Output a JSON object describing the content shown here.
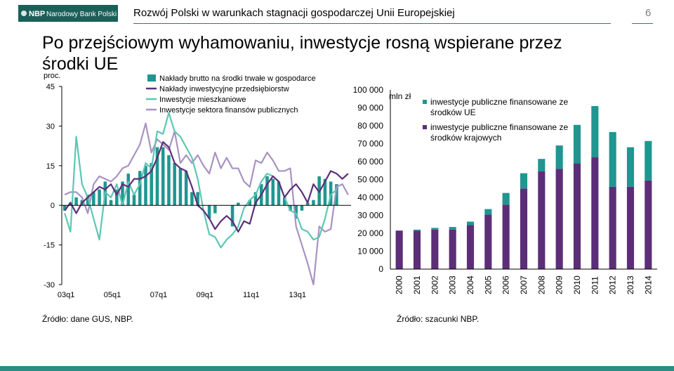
{
  "header": {
    "logo_short": "NBP",
    "logo_name": "Narodowy Bank Polski",
    "title": "Rozwój Polski w warunkach stagnacji gospodarczej Unii Europejskiej",
    "page_number": "6"
  },
  "main_title": "Po przejściowym wyhamowaniu, inwestycje rosną wspierane przez środki UE",
  "sources": {
    "left": "Źródło: dane GUS, NBP.",
    "right": "Źródło: szacunki NBP."
  },
  "colors": {
    "teal": "#1f9690",
    "purple": "#5c2e78",
    "light_teal": "#5cc7b2",
    "lavender": "#a892c2",
    "accent_line": "#2b7a72"
  },
  "chart_data": [
    {
      "type": "bar",
      "ylabel": "proc.",
      "ylim": [
        -30,
        45
      ],
      "yticks": [
        "45",
        "30",
        "15",
        "0",
        "-15",
        "-30"
      ],
      "xticks": [
        "03q1",
        "05q1",
        "07q1",
        "09q1",
        "11q1",
        "13q1"
      ],
      "legend": [
        "Nakłady brutto na środki trwałe w gospodarce",
        "Nakłady inwestycyjne przedsiębiorstw",
        "Inwestycje mieszkaniowe",
        "Inwestycje sektora finansów publicznych"
      ],
      "series": [
        {
          "name": "Nakłady brutto na środki trwałe w gospodarce",
          "kind": "bar",
          "values": [
            -2,
            1,
            3,
            2,
            4,
            5,
            6,
            9,
            2,
            6,
            9,
            12,
            4,
            13,
            15,
            16,
            22,
            22,
            19,
            16,
            14,
            13,
            5,
            5,
            0,
            -5,
            -3,
            0,
            0,
            -8,
            1,
            0,
            2,
            5,
            8,
            11,
            10,
            9,
            3,
            -2,
            -5,
            -2,
            1,
            2,
            11,
            10,
            9,
            8
          ]
        },
        {
          "name": "Nakłady inwestycyjne przedsiębiorstw",
          "kind": "line",
          "values": [
            -2,
            1,
            -3,
            1,
            3,
            5,
            7,
            6,
            8,
            4,
            8,
            7,
            10,
            10,
            11,
            13,
            18,
            24,
            22,
            16,
            14,
            13,
            7,
            0,
            -2,
            -5,
            -9,
            -6,
            -4,
            -6,
            -10,
            -6,
            -7,
            1,
            4,
            8,
            11,
            9,
            3,
            6,
            8,
            5,
            1,
            8,
            5,
            9,
            13,
            12,
            10,
            12
          ]
        },
        {
          "name": "Inwestycje mieszkaniowe",
          "kind": "line",
          "values": [
            -3,
            -10,
            26,
            8,
            3,
            -5,
            -13,
            5,
            3,
            8,
            0,
            9,
            4,
            8,
            16,
            14,
            28,
            27,
            35,
            28,
            26,
            22,
            18,
            10,
            -2,
            -11,
            -12,
            -16,
            -13,
            -11,
            -8,
            -1,
            2,
            4,
            9,
            12,
            11,
            9,
            3,
            -2,
            -3,
            -9,
            -10,
            -13,
            -12,
            -5,
            4,
            6
          ]
        },
        {
          "name": "Inwestycje sektora finansów publicznych",
          "kind": "line",
          "values": [
            4,
            5,
            5,
            3,
            -3,
            8,
            11,
            10,
            9,
            11,
            14,
            15,
            19,
            23,
            31,
            20,
            25,
            23,
            21,
            28,
            16,
            19,
            16,
            19,
            15,
            12,
            20,
            14,
            18,
            14,
            14,
            9,
            7,
            17,
            16,
            20,
            17,
            13,
            13,
            14,
            -8,
            -15,
            -22,
            -30,
            -8,
            -10,
            -9,
            7,
            8,
            4
          ]
        }
      ]
    },
    {
      "type": "bar",
      "stacked": true,
      "ylabel": "mln zł",
      "ylim": [
        0,
        100000
      ],
      "yticks": [
        "100 000",
        "90 000",
        "80 000",
        "70 000",
        "60 000",
        "50 000",
        "40 000",
        "30 000",
        "20 000",
        "10 000",
        "0"
      ],
      "categories": [
        "2000",
        "2001",
        "2002",
        "2003",
        "2004",
        "2005",
        "2006",
        "2007",
        "2008",
        "2009",
        "2010",
        "2011",
        "2012",
        "2013",
        "2014"
      ],
      "series": [
        {
          "name": "inwestycje publiczne finansowane ze środków krajowych",
          "values": [
            21500,
            21500,
            22000,
            22000,
            24500,
            30500,
            36000,
            45000,
            54500,
            56000,
            59000,
            62500,
            46000,
            46000,
            49500
          ]
        },
        {
          "name": "inwestycje publiczne finansowane ze środków UE",
          "values": [
            0,
            500,
            1000,
            1500,
            2000,
            3000,
            6500,
            8500,
            7000,
            13000,
            21500,
            28500,
            30500,
            22000,
            22000
          ]
        }
      ],
      "legend": [
        "inwestycje publiczne finansowane ze środków UE",
        "inwestycje publiczne finansowane ze środków krajowych"
      ]
    }
  ]
}
